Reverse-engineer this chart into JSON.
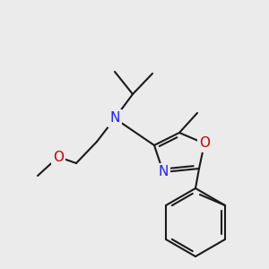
{
  "bg": "#ebebeb",
  "bond_color": "#1a1a1a",
  "n_color": "#2020ff",
  "o_color": "#cc0000",
  "lw": 1.5,
  "fontsize": 11,
  "figsize": [
    3.0,
    3.0
  ],
  "dpi": 100,
  "xlim": [
    0,
    300
  ],
  "ylim": [
    0,
    300
  ]
}
